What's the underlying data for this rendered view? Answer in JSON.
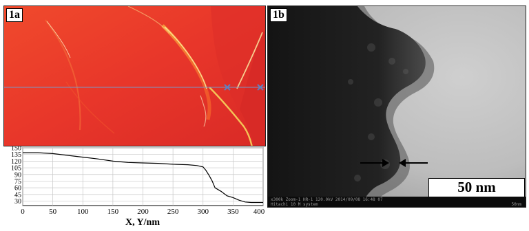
{
  "panel_a": {
    "label": "1a",
    "profile": {
      "xlabel": "X, Y/nm",
      "x_ticks": [
        "0",
        "50",
        "100",
        "150",
        "200",
        "250",
        "300",
        "350",
        "400"
      ],
      "y_ticks": [
        "150",
        "135",
        "120",
        "105",
        "90",
        "75",
        "60",
        "45",
        "30"
      ]
    }
  },
  "panel_b": {
    "label": "1b",
    "scale_label": "50 nm",
    "footer_line1": "x300k Zoom-1 HR-1 120.0kV 2014/09/08 16:48 07",
    "footer_line2": "Hitachi 10 M system",
    "footer_right": "50nm"
  },
  "colors": {
    "afm_red": "#e8372a",
    "afm_orange": "#f47a2d",
    "cursor_line": "#7a97c6",
    "tem_dark": "#1a1a1a",
    "tem_light": "#c7c7c7"
  },
  "chart_data": {
    "type": "line",
    "xlabel": "X, Y/nm",
    "xlim": [
      0,
      400
    ],
    "ylim": [
      20,
      150
    ],
    "x": [
      0,
      25,
      50,
      75,
      100,
      125,
      150,
      175,
      200,
      225,
      250,
      275,
      290,
      300,
      305,
      310,
      315,
      320,
      330,
      340,
      350,
      360,
      370,
      380,
      400
    ],
    "y": [
      139,
      139,
      137,
      133,
      129,
      125,
      120,
      117,
      116,
      115,
      113,
      112,
      110,
      107,
      99,
      88,
      76,
      60,
      52,
      42,
      38,
      32,
      28,
      27,
      27
    ]
  }
}
